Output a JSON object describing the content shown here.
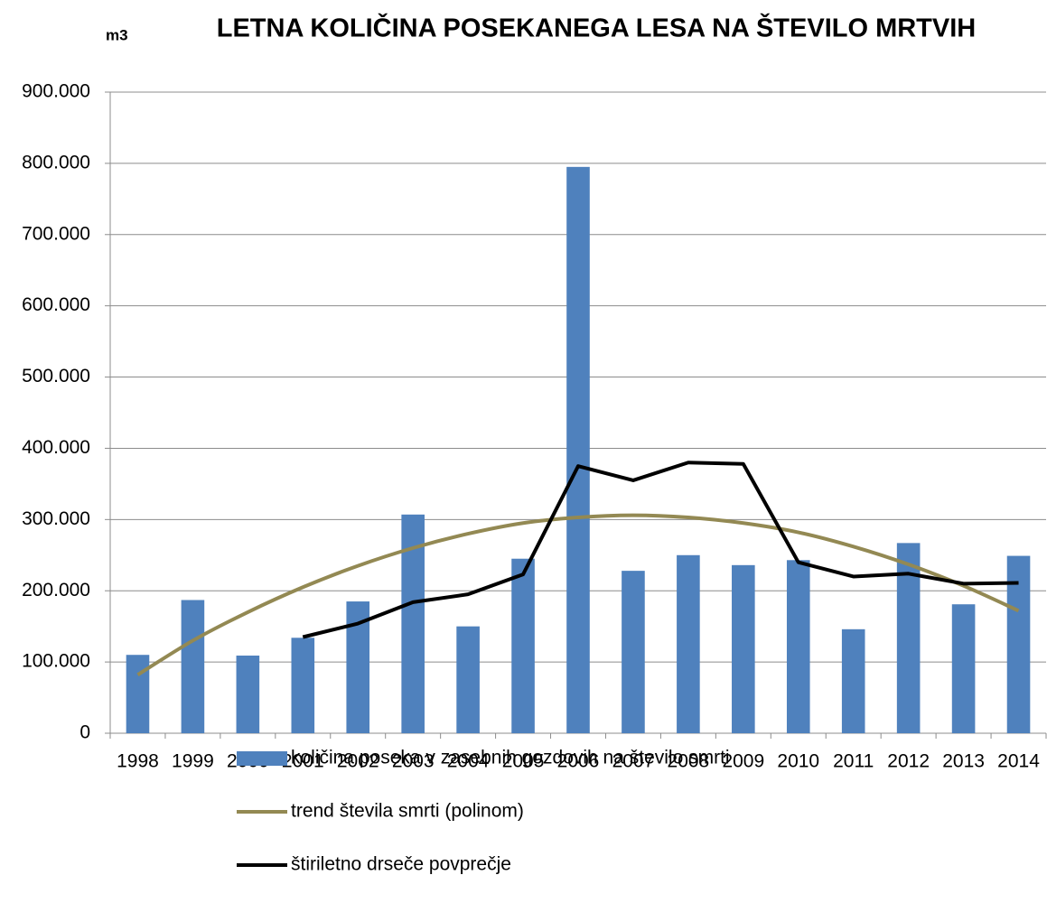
{
  "chart_data": {
    "type": "bar",
    "title": "LETNA KOLIČINA POSEKANEGA LESA NA ŠTEVILO MRTVIH",
    "y_label": "m3",
    "categories": [
      "1998",
      "1999",
      "2000",
      "2001",
      "2002",
      "2003",
      "2004",
      "2005",
      "2006",
      "2007",
      "2008",
      "2009",
      "2010",
      "2011",
      "2012",
      "2013",
      "2014"
    ],
    "series": [
      {
        "name": "količina poseka v zasebnih gozdovih na število smrti",
        "type": "bar",
        "color": "#4f81bd",
        "values": [
          110000,
          187000,
          109000,
          134000,
          185000,
          307000,
          150000,
          245000,
          795000,
          228000,
          250000,
          236000,
          243000,
          146000,
          267000,
          181000,
          249000
        ]
      },
      {
        "name": "trend števila smrti (polinom)",
        "type": "line",
        "smooth": true,
        "color": "#938953",
        "values": [
          82000,
          130000,
          170000,
          205000,
          235000,
          260000,
          280000,
          295000,
          303000,
          306000,
          303000,
          295000,
          282000,
          262000,
          237000,
          207000,
          172000
        ]
      },
      {
        "name": "štiriletno drseče povprečje",
        "type": "line",
        "color": "#000000",
        "values": [
          null,
          null,
          null,
          135000,
          154000,
          184000,
          195000,
          223000,
          375000,
          355000,
          380000,
          378000,
          240000,
          220000,
          224000,
          210000,
          211000
        ]
      }
    ],
    "ylim": [
      0,
      900000
    ],
    "yticks": [
      0,
      {
        "value": 100000,
        "label": "100.000"
      },
      {
        "value": 200000,
        "label": "200.000"
      },
      {
        "value": 300000,
        "label": "300.000"
      },
      {
        "value": 400000,
        "label": "400.000"
      },
      {
        "value": 500000,
        "label": "500.000"
      },
      {
        "value": 600000,
        "label": "600.000"
      },
      {
        "value": 700000,
        "label": "700.000"
      },
      {
        "value": 800000,
        "label": "800.000"
      },
      {
        "value": 900000,
        "label": "900.000"
      }
    ],
    "grid": true,
    "legend": "bottom"
  }
}
